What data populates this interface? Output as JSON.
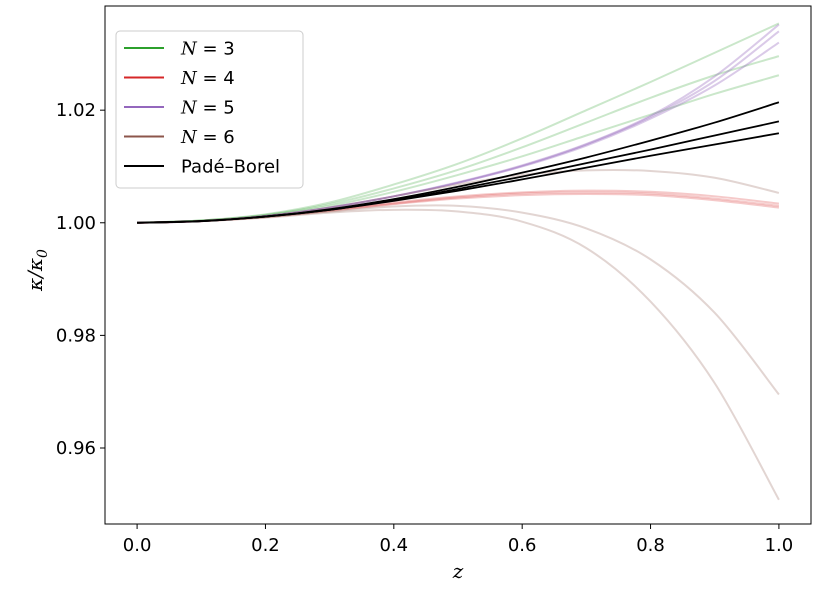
{
  "chart_data": {
    "type": "line",
    "xlabel": "z",
    "ylabel": "κ/κ0",
    "xlim": [
      -0.05,
      1.05
    ],
    "ylim": [
      0.9465,
      1.0385
    ],
    "x_ticks": [
      "0.0",
      "0.2",
      "0.4",
      "0.6",
      "0.8",
      "1.0"
    ],
    "y_ticks": [
      "0.96",
      "0.98",
      "1.00",
      "1.02"
    ],
    "legend_position": "upper-left",
    "grid": false,
    "legend": [
      {
        "label": "N = 3",
        "color": "#2ca02c"
      },
      {
        "label": "N = 4",
        "color": "#d62728"
      },
      {
        "label": "N = 5",
        "color": "#9467bd"
      },
      {
        "label": "N = 6",
        "color": "#8c564b"
      },
      {
        "label": "Padé–Borel",
        "color": "#000000"
      }
    ],
    "x": [
      0.0,
      0.1,
      0.2,
      0.3,
      0.4,
      0.5,
      0.6,
      0.7,
      0.8,
      0.9,
      1.0
    ],
    "series": [
      {
        "group": "N = 3",
        "color": "#2ca02c",
        "alpha": 0.25,
        "values": [
          1.0,
          1.0004,
          1.0015,
          1.0036,
          1.0068,
          1.0105,
          1.015,
          1.02,
          1.025,
          1.0302,
          1.0354
        ]
      },
      {
        "group": "N = 3",
        "color": "#2ca02c",
        "alpha": 0.25,
        "values": [
          1.0,
          1.0004,
          1.0014,
          1.0033,
          1.0061,
          1.0094,
          1.0134,
          1.0178,
          1.0222,
          1.0262,
          1.0296
        ]
      },
      {
        "group": "N = 3",
        "color": "#2ca02c",
        "alpha": 0.25,
        "values": [
          1.0,
          1.0004,
          1.0013,
          1.003,
          1.0055,
          1.0085,
          1.0118,
          1.0155,
          1.0192,
          1.0229,
          1.0262
        ]
      },
      {
        "group": "N = 4",
        "color": "#d62728",
        "alpha": 0.25,
        "values": [
          1.0,
          1.0003,
          1.0011,
          1.0023,
          1.0036,
          1.0047,
          1.0054,
          1.0057,
          1.0055,
          1.0047,
          1.0034
        ]
      },
      {
        "group": "N = 4",
        "color": "#d62728",
        "alpha": 0.25,
        "values": [
          1.0,
          1.0003,
          1.0011,
          1.0022,
          1.0034,
          1.0045,
          1.0052,
          1.0054,
          1.0052,
          1.0043,
          1.003
        ]
      },
      {
        "group": "N = 4",
        "color": "#d62728",
        "alpha": 0.25,
        "values": [
          1.0,
          1.0003,
          1.001,
          1.0021,
          1.0033,
          1.0043,
          1.0049,
          1.0051,
          1.0049,
          1.004,
          1.0027
        ]
      },
      {
        "group": "N = 5",
        "color": "#9467bd",
        "alpha": 0.35,
        "values": [
          1.0,
          1.0003,
          1.0012,
          1.0027,
          1.0047,
          1.0072,
          1.0102,
          1.014,
          1.019,
          1.026,
          1.0352
        ]
      },
      {
        "group": "N = 5",
        "color": "#9467bd",
        "alpha": 0.35,
        "values": [
          1.0,
          1.0003,
          1.0012,
          1.0027,
          1.0047,
          1.0071,
          1.0101,
          1.0139,
          1.0188,
          1.0252,
          1.034
        ]
      },
      {
        "group": "N = 5",
        "color": "#9467bd",
        "alpha": 0.35,
        "values": [
          1.0,
          1.0003,
          1.0012,
          1.0027,
          1.0047,
          1.0071,
          1.01,
          1.0137,
          1.0185,
          1.0244,
          1.032
        ]
      },
      {
        "group": "N = 6",
        "color": "#8c564b",
        "alpha": 0.25,
        "values": [
          1.0,
          1.0003,
          1.0012,
          1.0027,
          1.0047,
          1.0068,
          1.0085,
          1.0093,
          1.0092,
          1.008,
          1.0053
        ]
      },
      {
        "group": "N = 6",
        "color": "#8c564b",
        "alpha": 0.25,
        "values": [
          1.0,
          1.0003,
          1.001,
          1.002,
          1.0029,
          1.003,
          1.0018,
          0.999,
          0.9935,
          0.984,
          0.9695
        ]
      },
      {
        "group": "N = 6",
        "color": "#8c564b",
        "alpha": 0.25,
        "values": [
          1.0,
          1.0003,
          1.0009,
          1.0018,
          1.0023,
          1.002,
          1.0002,
          0.9955,
          0.986,
          0.9715,
          0.9508
        ]
      },
      {
        "group": "Padé–Borel",
        "color": "#000000",
        "alpha": 1.0,
        "values": [
          1.0,
          1.0003,
          1.0011,
          1.0024,
          1.0042,
          1.0064,
          1.0089,
          1.0116,
          1.0146,
          1.0178,
          1.0214
        ]
      },
      {
        "group": "Padé–Borel",
        "color": "#000000",
        "alpha": 1.0,
        "values": [
          1.0,
          1.0003,
          1.0011,
          1.0023,
          1.004,
          1.006,
          1.0082,
          1.0106,
          1.013,
          1.0155,
          1.018
        ]
      },
      {
        "group": "Padé–Borel",
        "color": "#000000",
        "alpha": 1.0,
        "values": [
          1.0,
          1.0003,
          1.0011,
          1.0023,
          1.0039,
          1.0057,
          1.0077,
          1.0098,
          1.0119,
          1.0139,
          1.0159
        ]
      }
    ]
  }
}
